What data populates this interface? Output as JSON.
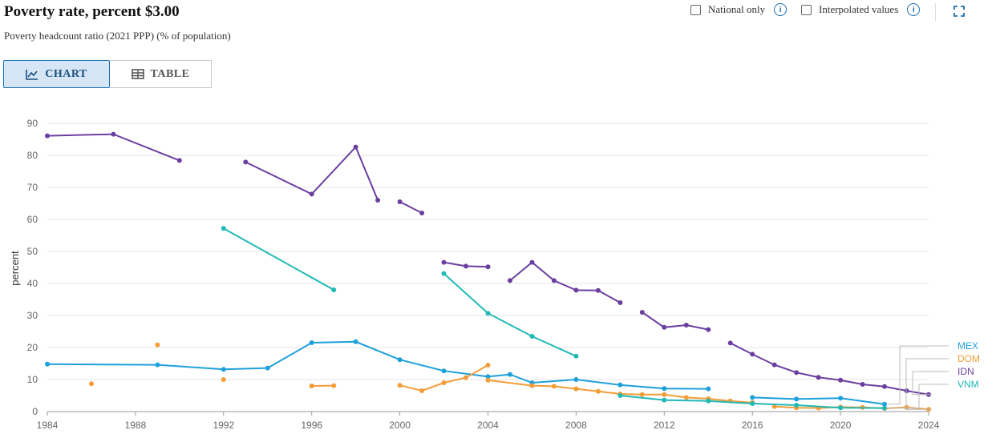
{
  "header": {
    "title": "Poverty rate, percent $3.00",
    "subtitle": "Poverty headcount ratio (2021 PPP) (% of population)"
  },
  "options": {
    "national_only_label": "National only",
    "interpolated_label": "Interpolated values"
  },
  "tabs": [
    {
      "label": "CHART",
      "active": true,
      "icon": "line-chart-icon"
    },
    {
      "label": "TABLE",
      "active": false,
      "icon": "table-icon"
    }
  ],
  "chart_data": {
    "type": "line",
    "title": "Poverty rate, percent $3.00",
    "ylabel": "percent",
    "xlim": [
      1984,
      2024
    ],
    "ylim": [
      0,
      90
    ],
    "yticks": [
      0,
      10,
      20,
      30,
      40,
      50,
      60,
      70,
      80,
      90
    ],
    "xticks": [
      1984,
      1988,
      1992,
      1996,
      2000,
      2004,
      2008,
      2012,
      2016,
      2020,
      2024
    ],
    "grid": true,
    "legend_position": "right",
    "series": [
      {
        "name": "MEX",
        "color": "#1ea0db",
        "segments": [
          [
            [
              1984,
              14.8
            ],
            [
              1989,
              14.6
            ],
            [
              1992,
              13.2
            ],
            [
              1994,
              13.6
            ],
            [
              1996,
              21.5
            ],
            [
              1998,
              21.8
            ],
            [
              2000,
              16.2
            ],
            [
              2002,
              12.7
            ],
            [
              2004,
              10.9
            ],
            [
              2005,
              11.6
            ],
            [
              2006,
              9.0
            ],
            [
              2008,
              10.0
            ],
            [
              2010,
              8.3
            ],
            [
              2012,
              7.2
            ],
            [
              2014,
              7.1
            ]
          ],
          [
            [
              2016,
              4.4
            ],
            [
              2018,
              3.9
            ],
            [
              2020,
              4.2
            ],
            [
              2022,
              2.3
            ]
          ]
        ]
      },
      {
        "name": "DOM",
        "color": "#f29d38",
        "segments": [
          [
            [
              1986,
              8.7
            ]
          ],
          [
            [
              1989,
              20.8
            ]
          ],
          [
            [
              1992,
              10.0
            ]
          ],
          [
            [
              1996,
              8.0
            ],
            [
              1997,
              8.1
            ]
          ],
          [
            [
              2000,
              8.2
            ],
            [
              2001,
              6.5
            ],
            [
              2002,
              9.0
            ],
            [
              2003,
              10.6
            ],
            [
              2004,
              14.5
            ]
          ],
          [
            [
              2004,
              9.8
            ],
            [
              2006,
              8.1
            ],
            [
              2007,
              7.9
            ],
            [
              2008,
              7.1
            ],
            [
              2009,
              6.3
            ],
            [
              2010,
              5.5
            ],
            [
              2011,
              5.3
            ],
            [
              2012,
              5.3
            ],
            [
              2013,
              4.4
            ],
            [
              2014,
              4.0
            ],
            [
              2015,
              3.3
            ],
            [
              2016,
              2.8
            ]
          ],
          [
            [
              2017,
              1.6
            ],
            [
              2018,
              1.2
            ],
            [
              2019,
              1.1
            ],
            [
              2020,
              1.4
            ],
            [
              2021,
              1.3
            ],
            [
              2022,
              1.0
            ],
            [
              2023,
              1.3
            ],
            [
              2024,
              0.7
            ]
          ]
        ]
      },
      {
        "name": "IDN",
        "color": "#6b3fa0",
        "segments": [
          [
            [
              1984,
              86.1
            ],
            [
              1987,
              86.6
            ],
            [
              1990,
              78.4
            ]
          ],
          [
            [
              1993,
              77.9
            ],
            [
              1996,
              67.9
            ],
            [
              1998,
              82.6
            ],
            [
              1999,
              66.0
            ]
          ],
          [
            [
              2000,
              65.5
            ],
            [
              2001,
              62.0
            ]
          ],
          [
            [
              2002,
              46.6
            ],
            [
              2003,
              45.4
            ],
            [
              2004,
              45.2
            ]
          ],
          [
            [
              2005,
              40.9
            ],
            [
              2006,
              46.6
            ],
            [
              2007,
              40.9
            ],
            [
              2008,
              37.9
            ],
            [
              2009,
              37.8
            ],
            [
              2010,
              34.0
            ]
          ],
          [
            [
              2011,
              31.0
            ],
            [
              2012,
              26.3
            ],
            [
              2013,
              27.0
            ],
            [
              2014,
              25.6
            ]
          ],
          [
            [
              2015,
              21.4
            ],
            [
              2016,
              17.9
            ],
            [
              2017,
              14.6
            ],
            [
              2018,
              12.2
            ],
            [
              2019,
              10.7
            ],
            [
              2020,
              9.8
            ],
            [
              2021,
              8.5
            ],
            [
              2022,
              7.8
            ],
            [
              2023,
              6.5
            ],
            [
              2024,
              5.3
            ]
          ]
        ]
      },
      {
        "name": "VNM",
        "color": "#21b9b5",
        "segments": [
          [
            [
              1992,
              57.2
            ],
            [
              1997,
              38.0
            ]
          ],
          [
            [
              2002,
              43.1
            ],
            [
              2004,
              30.7
            ],
            [
              2006,
              23.5
            ],
            [
              2008,
              17.3
            ]
          ],
          [
            [
              2010,
              5.0
            ],
            [
              2012,
              3.6
            ],
            [
              2014,
              3.3
            ],
            [
              2016,
              2.5
            ],
            [
              2018,
              2.0
            ],
            [
              2020,
              1.2
            ],
            [
              2022,
              1.1
            ]
          ]
        ]
      }
    ]
  }
}
